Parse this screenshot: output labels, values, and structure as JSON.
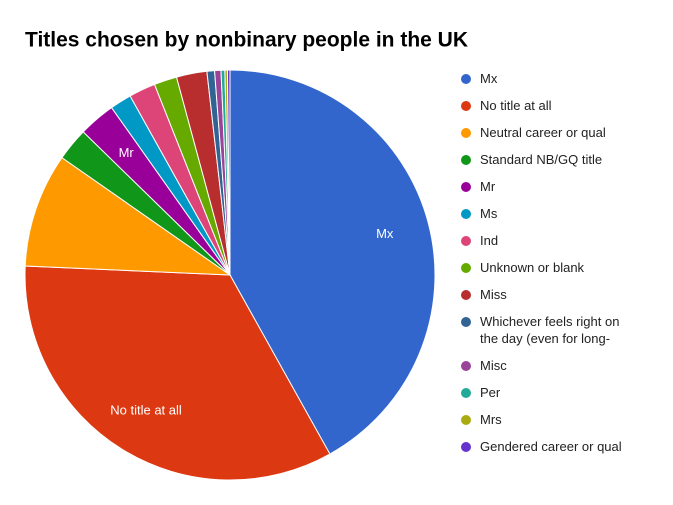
{
  "chart_data": {
    "type": "pie",
    "title": "Titles chosen by nonbinary people in the UK",
    "categories": [
      "Mx",
      "No title at all",
      "Neutral career or qual",
      "Standard NB/GQ title",
      "Mr",
      "Ms",
      "Ind",
      "Unknown or blank",
      "Miss",
      "Whichever feels right on the day (even for long-",
      "Misc",
      "Per",
      "Mrs",
      "Gendered career or qual"
    ],
    "values": [
      41.9,
      33.8,
      9,
      2.6,
      2.9,
      1.7,
      2.1,
      1.8,
      2.4,
      0.6,
      0.5,
      0.3,
      0.2,
      0.2
    ],
    "colors": [
      "#3366cc",
      "#dc3912",
      "#ff9900",
      "#109618",
      "#990099",
      "#0099c6",
      "#dd4477",
      "#66aa00",
      "#b82e2e",
      "#316395",
      "#994499",
      "#22aa99",
      "#aaaa11",
      "#6633cc"
    ],
    "legend": "right"
  }
}
